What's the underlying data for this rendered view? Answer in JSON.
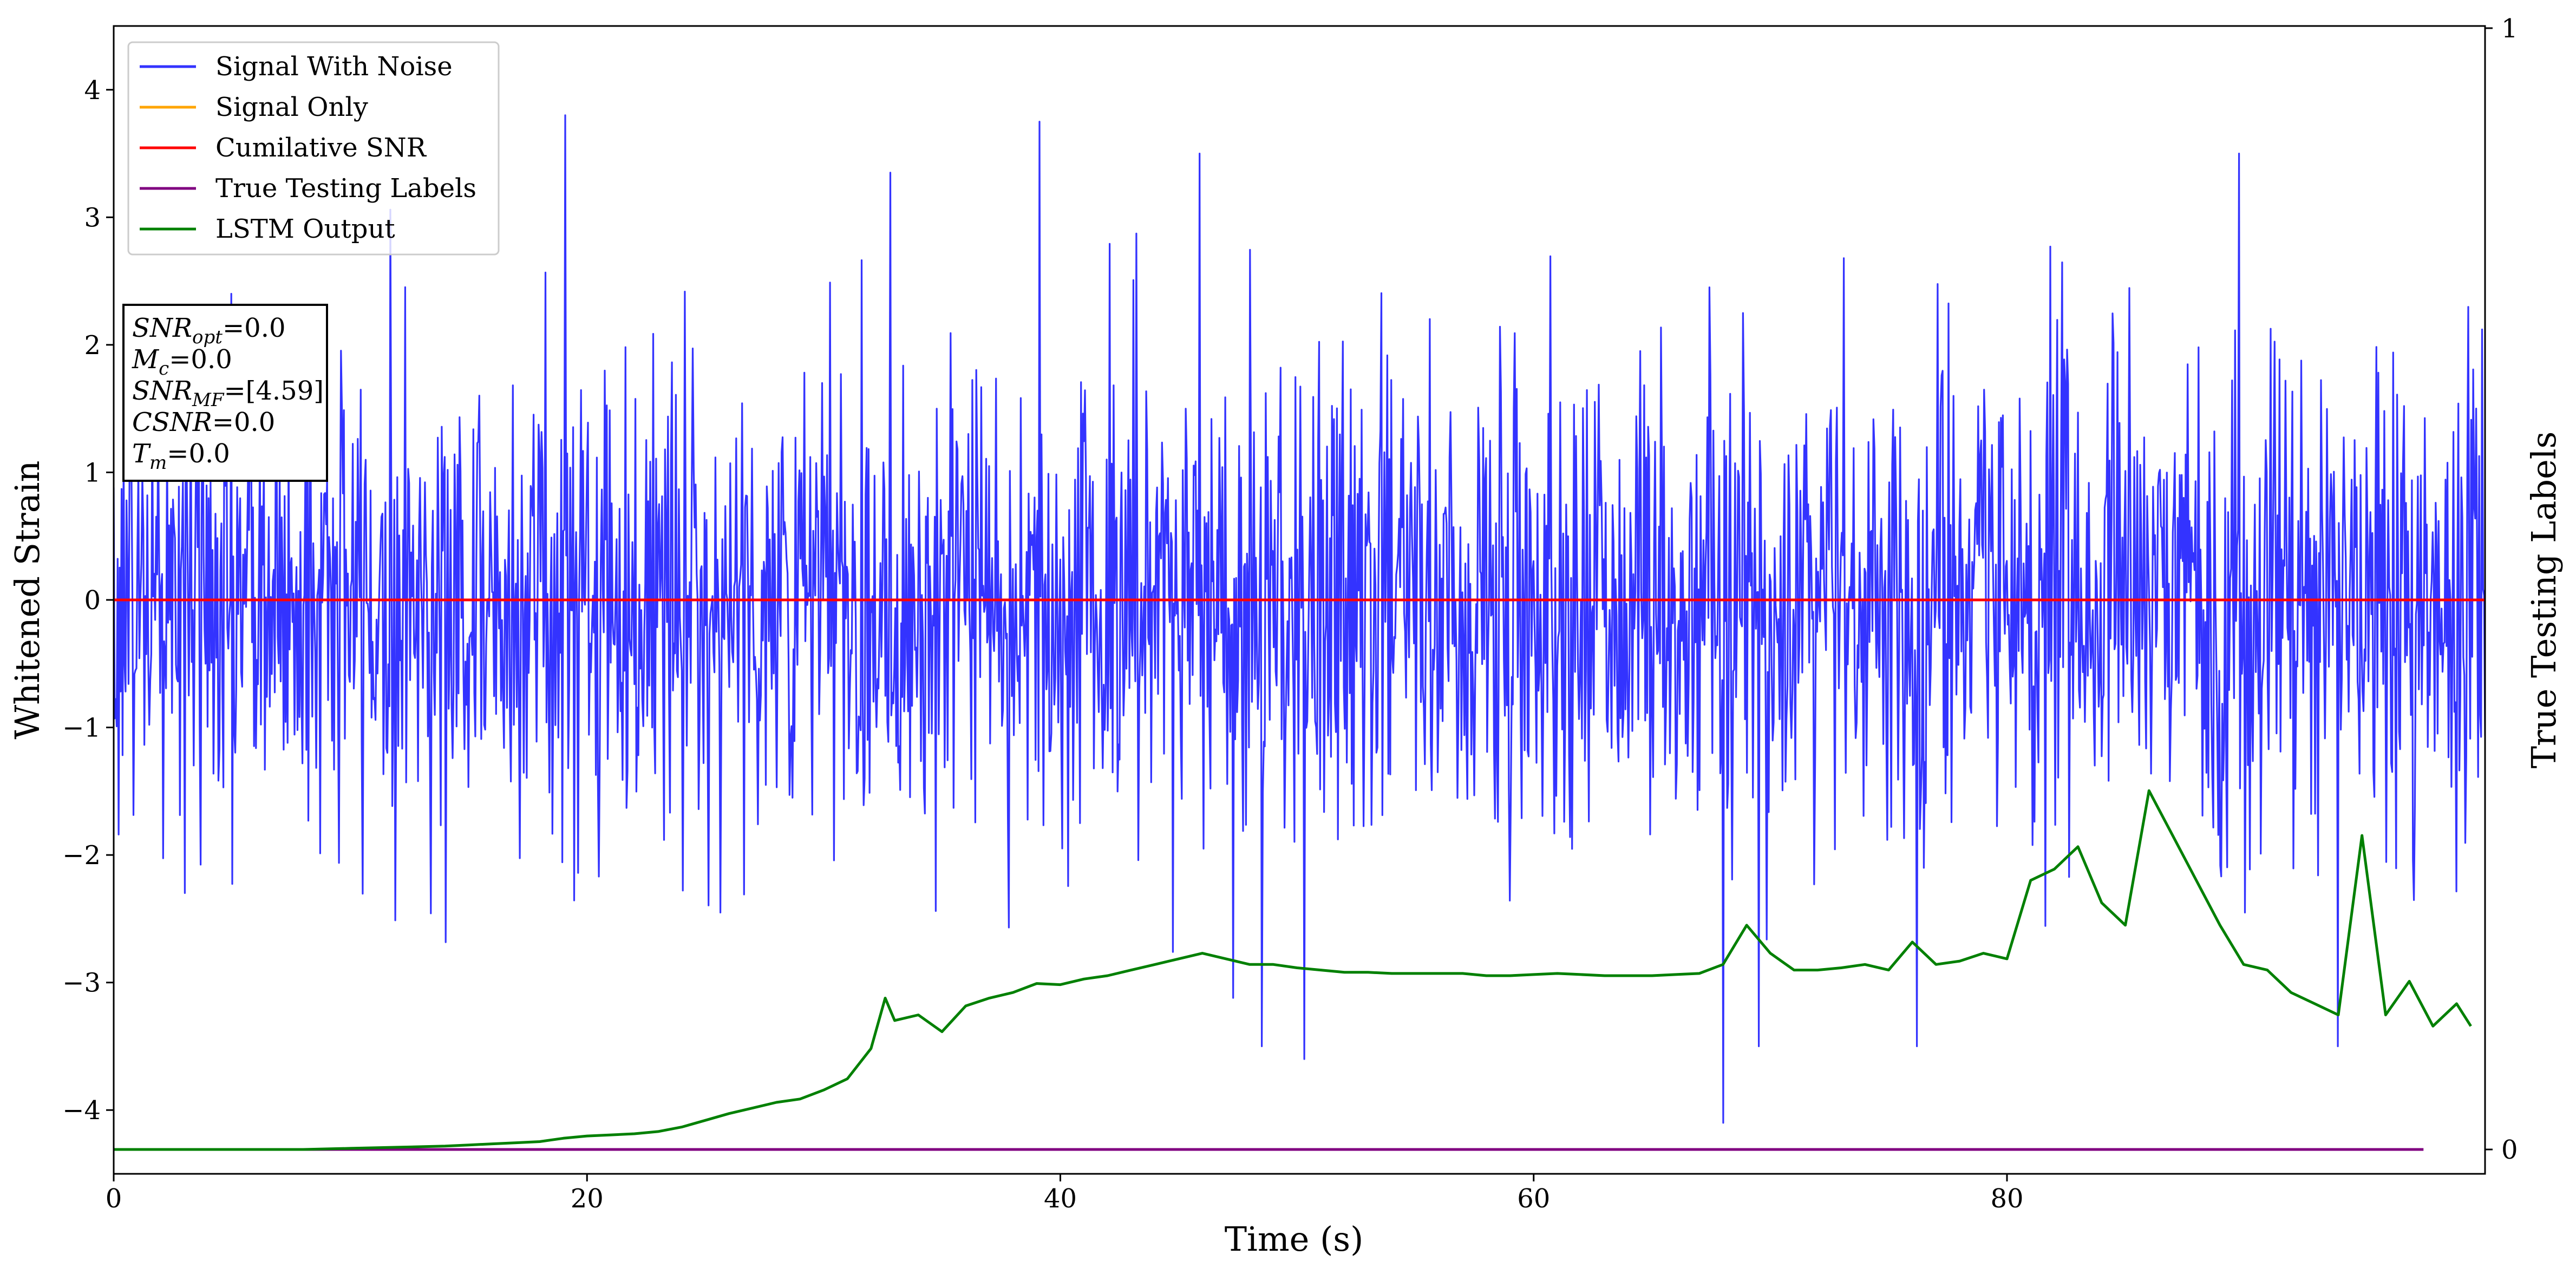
{
  "chart_data": {
    "type": "line",
    "xlabel": "Time (s)",
    "ylabel": "Whitened Strain",
    "y2label": "True Testing Labels",
    "xlim": [
      0,
      100.2
    ],
    "ylim": [
      -4.5,
      4.5
    ],
    "y2lim": [
      0,
      1
    ],
    "x_ticks": [
      0,
      20,
      40,
      60,
      80
    ],
    "y_ticks": [
      -4,
      -3,
      -2,
      -1,
      0,
      1,
      2,
      3,
      4
    ],
    "y2_ticks": [
      0,
      1
    ],
    "grid": false,
    "legend_position": "top-left",
    "info_box": [
      {
        "sym": "SNR",
        "sub": "opt",
        "value": "=0.0"
      },
      {
        "sym": "M",
        "sub": "c",
        "value": "=0.0"
      },
      {
        "sym": "SNR",
        "sub": "MF",
        "value": "=[4.59]"
      },
      {
        "sym": "CSNR",
        "sub": "",
        "value": "=0.0"
      },
      {
        "sym": "T",
        "sub": "m",
        "value": "=0.0"
      }
    ],
    "series": [
      {
        "name": "Signal With Noise",
        "color": "#3333ff",
        "axis": "left",
        "kind": "noise",
        "sample_count": 2400,
        "center": 0.0,
        "approx_range": [
          -4.1,
          3.8
        ],
        "notable_peaks": [
          {
            "x": 19.1,
            "y": 3.8
          },
          {
            "x": 39.1,
            "y": 3.75
          },
          {
            "x": 32.8,
            "y": 3.35
          },
          {
            "x": 45.9,
            "y": 3.5
          },
          {
            "x": 89.8,
            "y": 3.5
          },
          {
            "x": 48.5,
            "y": -3.5
          },
          {
            "x": 50.3,
            "y": -3.6
          },
          {
            "x": 68.0,
            "y": -4.1
          },
          {
            "x": 69.5,
            "y": -3.5
          },
          {
            "x": 76.2,
            "y": -3.5
          },
          {
            "x": 94.0,
            "y": -3.5
          }
        ]
      },
      {
        "name": "Signal Only",
        "color": "#ffa500",
        "axis": "left",
        "x": [
          0,
          100.2
        ],
        "y": [
          0,
          0
        ]
      },
      {
        "name": "Cumilative SNR",
        "color": "#ff0000",
        "axis": "left",
        "x": [
          0,
          100.2
        ],
        "y": [
          0,
          0
        ]
      },
      {
        "name": "True Testing Labels",
        "color": "#800080",
        "axis": "right",
        "x": [
          0,
          97.6
        ],
        "y": [
          0,
          0
        ]
      },
      {
        "name": "LSTM Output",
        "color": "#008000",
        "axis": "right",
        "x": [
          0,
          2,
          4,
          6,
          8,
          10,
          12,
          14,
          15,
          16,
          17,
          18,
          19,
          20,
          21,
          22,
          23,
          24,
          25,
          26,
          27,
          28,
          29,
          30,
          31,
          32,
          32.6,
          33,
          34,
          35,
          36,
          37,
          38,
          39,
          40,
          41,
          42,
          43,
          44,
          45,
          46,
          47,
          48,
          49,
          50,
          51,
          52,
          53,
          54,
          55,
          56,
          57,
          58,
          59,
          60,
          61,
          62,
          63,
          64,
          65,
          66,
          67,
          68,
          69,
          70,
          71,
          72,
          73,
          74,
          75,
          76,
          77,
          78,
          79,
          80,
          81,
          82,
          83,
          84,
          85,
          86,
          87,
          88,
          89,
          90,
          91,
          92,
          93,
          94,
          95,
          96,
          97,
          98,
          99,
          99.6
        ],
        "y": [
          0.0,
          0.0,
          0.0,
          0.0,
          0.0,
          0.001,
          0.002,
          0.003,
          0.004,
          0.005,
          0.006,
          0.007,
          0.01,
          0.012,
          0.013,
          0.014,
          0.016,
          0.02,
          0.026,
          0.032,
          0.037,
          0.042,
          0.045,
          0.053,
          0.063,
          0.09,
          0.135,
          0.115,
          0.12,
          0.105,
          0.128,
          0.135,
          0.14,
          0.148,
          0.147,
          0.152,
          0.155,
          0.16,
          0.165,
          0.17,
          0.175,
          0.17,
          0.165,
          0.165,
          0.162,
          0.16,
          0.158,
          0.158,
          0.157,
          0.157,
          0.157,
          0.157,
          0.155,
          0.155,
          0.156,
          0.157,
          0.156,
          0.155,
          0.155,
          0.155,
          0.156,
          0.157,
          0.165,
          0.2,
          0.175,
          0.16,
          0.16,
          0.162,
          0.165,
          0.16,
          0.185,
          0.165,
          0.168,
          0.175,
          0.17,
          0.24,
          0.25,
          0.27,
          0.22,
          0.2,
          0.32,
          0.28,
          0.24,
          0.2,
          0.165,
          0.16,
          0.14,
          0.13,
          0.12,
          0.28,
          0.12,
          0.15,
          0.11,
          0.13,
          0.11
        ]
      }
    ]
  }
}
